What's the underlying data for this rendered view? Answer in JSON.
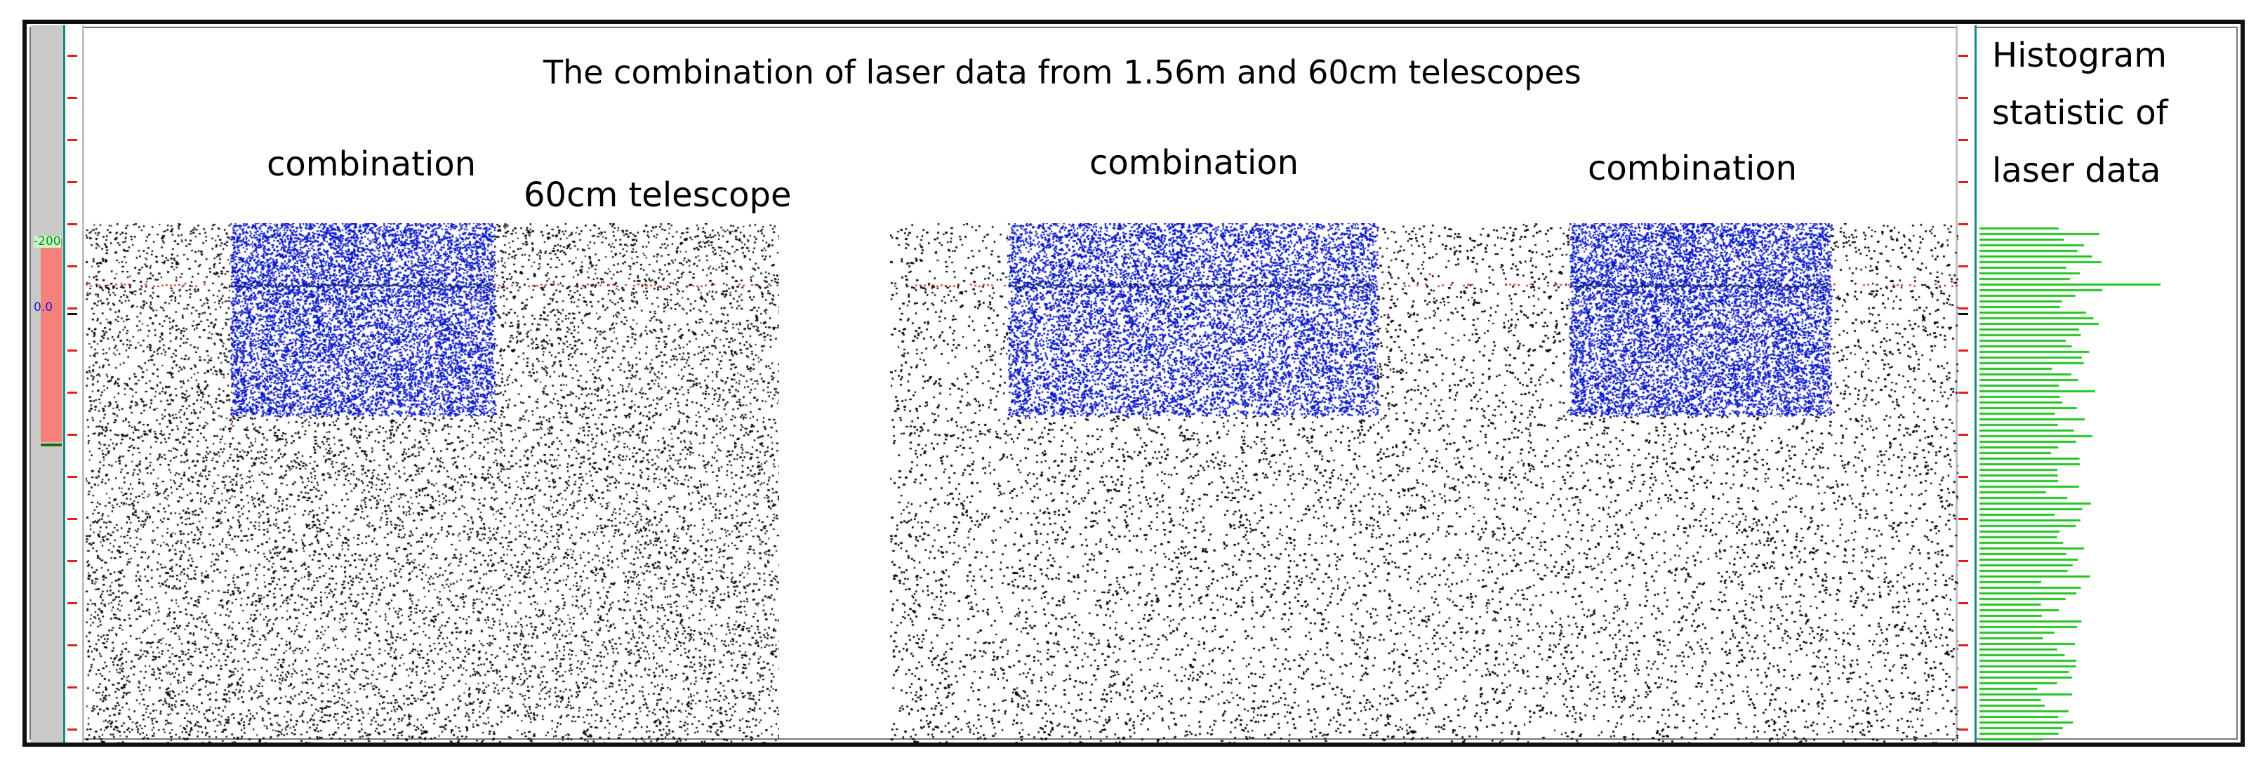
{
  "chart_data": {
    "type": "scatter",
    "title": "The combination of laser data from 1.56m and 60cm telescopes",
    "annotations": [
      "combination",
      "60cm telescope",
      "combination",
      "combination"
    ],
    "histogram_title": "Histogram statistic of laser data",
    "histogram_title_lines": [
      "Histogram",
      "statistic of",
      "laser data"
    ],
    "axis_labels": [
      "-200",
      "0.0"
    ],
    "series": [
      {
        "name": "",
        "color": "#000000"
      },
      {
        "name": "",
        "color": "#0a18c8"
      },
      {
        "name": "",
        "color": "#d02020"
      },
      {
        "name": "",
        "color": "#22c422"
      }
    ]
  }
}
